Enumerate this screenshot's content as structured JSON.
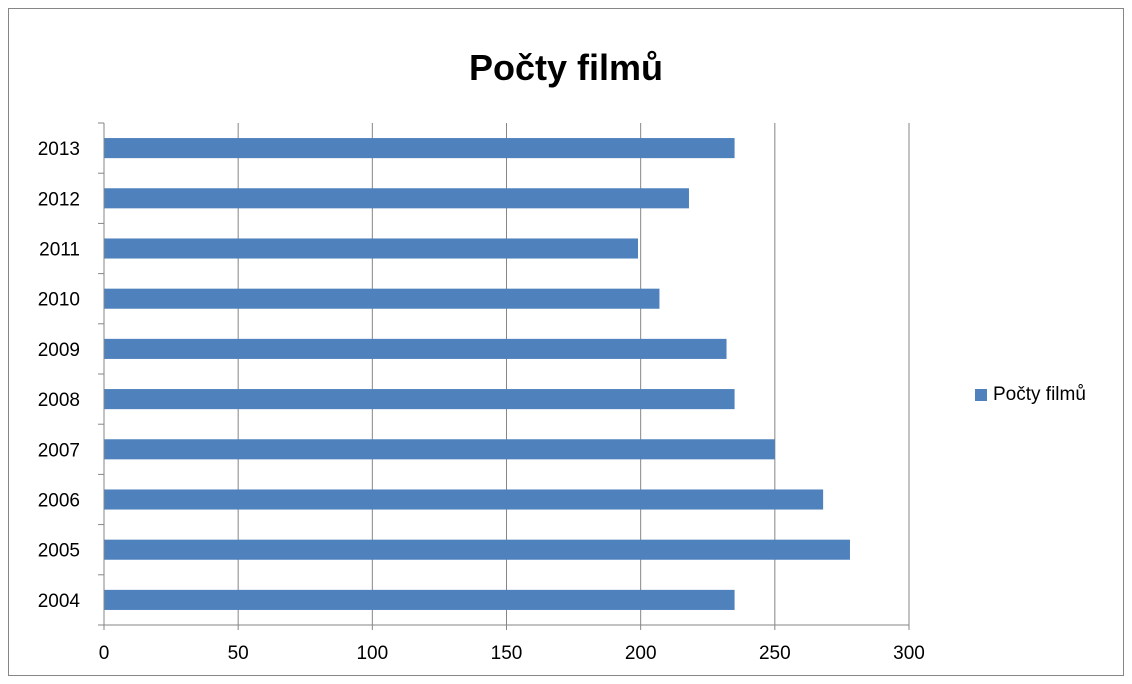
{
  "chart_data": {
    "type": "bar",
    "orientation": "horizontal",
    "title": "Počty filmů",
    "categories": [
      "2004",
      "2005",
      "2006",
      "2007",
      "2008",
      "2009",
      "2010",
      "2011",
      "2012",
      "2013"
    ],
    "series": [
      {
        "name": "Počty filmů",
        "color": "#4f81bd",
        "values": [
          235,
          278,
          268,
          250,
          235,
          232,
          207,
          199,
          218,
          235
        ]
      }
    ],
    "x_ticks": [
      "0",
      "50",
      "100",
      "150",
      "200",
      "250",
      "300"
    ],
    "xlim": [
      0,
      300
    ],
    "xlabel": "",
    "ylabel": "",
    "grid": "vertical",
    "legend_position": "right"
  }
}
